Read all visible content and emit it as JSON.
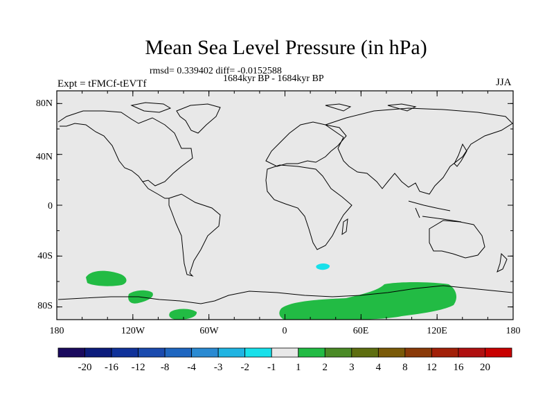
{
  "title": "Mean Sea Level Pressure (in hPa)",
  "stats_line": "rmsd= 0.339402 diff= -0.0152588",
  "period_line": "1684kyr BP - 1684kyr BP",
  "experiment_label": "Expt = tFMCf-tEVTf",
  "season_label": "JJA",
  "y_axis_labels": [
    "80N",
    "40N",
    "0",
    "40S",
    "80S"
  ],
  "x_axis_labels": [
    "180",
    "120W",
    "60W",
    "0",
    "60E",
    "120E",
    "180"
  ],
  "colorbar": {
    "labels": [
      "-20",
      "-16",
      "-12",
      "-8",
      "-4",
      "-3",
      "-2",
      "-1",
      "1",
      "2",
      "3",
      "4",
      "8",
      "12",
      "16",
      "20"
    ],
    "colors": [
      "#1a0a5e",
      "#0c1c7c",
      "#10329a",
      "#1a4aae",
      "#1e66c0",
      "#2a8ad2",
      "#20b4e2",
      "#18e0ea",
      "#e8e8e8",
      "#22bb44",
      "#4a8a26",
      "#5e6e10",
      "#7a5a08",
      "#8a3a08",
      "#a22008",
      "#b01010",
      "#c80000"
    ]
  },
  "colors": {
    "ocean_background": "#e8e8e8",
    "positive_anomaly": "#22bb44",
    "negative_anomaly": "#18e0ea"
  }
}
